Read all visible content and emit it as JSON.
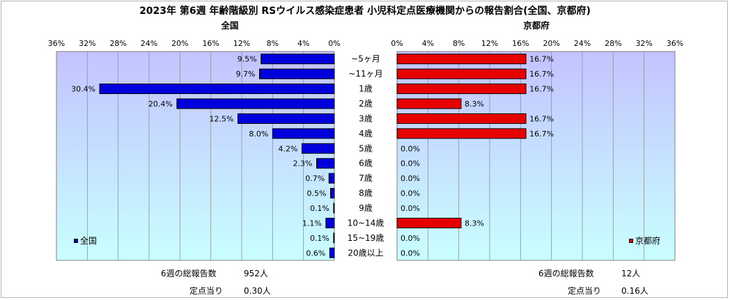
{
  "title": "2023年 第6週 年齢階級別 RSウイルス感染症患者 小児科定点医療機関からの報告割合(全国、京都府)",
  "colors": {
    "national": "#0000dd",
    "kyoto": "#e60000",
    "plot_bg_top": "#c3c3ff",
    "plot_bg_bottom": "#c8ffff"
  },
  "chart_data": [
    {
      "type": "bar",
      "orientation": "horizontal-reversed",
      "subtitle": "全国",
      "categories": [
        "~5ヶ月",
        "~11ヶ月",
        "1歳",
        "2歳",
        "3歳",
        "4歳",
        "5歳",
        "6歳",
        "7歳",
        "8歳",
        "9歳",
        "10~14歳",
        "15~19歳",
        "20歳以上"
      ],
      "values": [
        9.5,
        9.7,
        30.4,
        20.4,
        12.5,
        8.0,
        4.2,
        2.3,
        0.7,
        0.5,
        0.1,
        1.1,
        0.1,
        0.6
      ],
      "data_labels": [
        "9.5%",
        "9.7%",
        "30.4%",
        "20.4%",
        "12.5%",
        "8.0%",
        "4.2%",
        "2.3%",
        "0.7%",
        "0.5%",
        "0.1%",
        "1.1%",
        "0.1%",
        "0.6%"
      ],
      "xlim": [
        0,
        36
      ],
      "ticks": [
        36,
        32,
        28,
        24,
        20,
        16,
        12,
        8,
        4,
        0
      ],
      "tick_labels": [
        "36%",
        "32%",
        "28%",
        "24%",
        "20%",
        "16%",
        "12%",
        "8%",
        "4%",
        "0%"
      ],
      "series": [
        {
          "name": "全国"
        }
      ],
      "legend": "bottom-left",
      "grid": true
    },
    {
      "type": "bar",
      "orientation": "horizontal",
      "subtitle": "京都府",
      "categories": [
        "~5ヶ月",
        "~11ヶ月",
        "1歳",
        "2歳",
        "3歳",
        "4歳",
        "5歳",
        "6歳",
        "7歳",
        "8歳",
        "9歳",
        "10~14歳",
        "15~19歳",
        "20歳以上"
      ],
      "values": [
        16.7,
        16.7,
        16.7,
        8.3,
        16.7,
        16.7,
        0.0,
        0.0,
        0.0,
        0.0,
        0.0,
        8.3,
        0.0,
        0.0
      ],
      "data_labels": [
        "16.7%",
        "16.7%",
        "16.7%",
        "8.3%",
        "16.7%",
        "16.7%",
        "0.0%",
        "0.0%",
        "0.0%",
        "0.0%",
        "0.0%",
        "8.3%",
        "0.0%",
        "0.0%"
      ],
      "xlim": [
        0,
        36
      ],
      "ticks": [
        0,
        4,
        8,
        12,
        16,
        20,
        24,
        28,
        32,
        36
      ],
      "tick_labels": [
        "0%",
        "4%",
        "8%",
        "12%",
        "16%",
        "20%",
        "24%",
        "28%",
        "32%",
        "36%"
      ],
      "series": [
        {
          "name": "京都府"
        }
      ],
      "legend": "bottom-right",
      "grid": true
    }
  ],
  "footer": {
    "national": {
      "total_label": "6週の総報告数",
      "total_value": "952人",
      "per_label": "定点当り",
      "per_value": "0.30人"
    },
    "kyoto": {
      "total_label": "6週の総報告数",
      "total_value": "12人",
      "per_label": "定点当り",
      "per_value": "0.16人"
    }
  }
}
